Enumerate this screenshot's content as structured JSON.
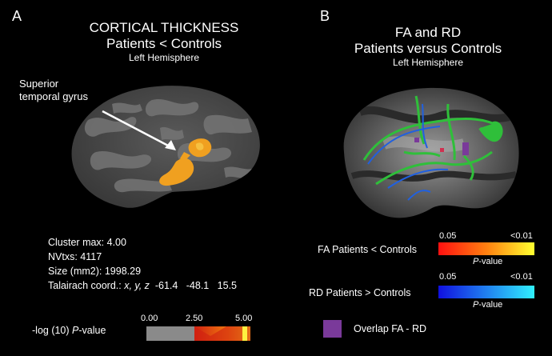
{
  "panel_a": {
    "letter": "A",
    "title_line1": "CORTICAL THICKNESS",
    "title_line2": "Patients < Controls",
    "subtitle": "Left Hemisphere",
    "annotation_line1": "Superior",
    "annotation_line2": "temporal gyrus",
    "stats": {
      "cluster_max": "Cluster max: 4.00",
      "nvtxs": "NVtxs: 4117",
      "size": "Size (mm2): 1998.29",
      "talairach_label": "Talairach coord.: ",
      "talairach_axes": "x, y, z",
      "talairach_values": "  -61.4   -48.1   15.5"
    },
    "colorbar": {
      "label_prefix": "-log (10) ",
      "label_italic": "P",
      "label_suffix": "-value",
      "tick_0": "0.00",
      "tick_1": "2.50",
      "tick_2": "5.00"
    }
  },
  "panel_b": {
    "letter": "B",
    "title_line1": "FA and RD",
    "title_line2": "Patients versus Controls",
    "subtitle": "Left Hemisphere",
    "fa_legend": {
      "label": "FA  Patients < Controls",
      "tick_low": "0.05",
      "tick_high": "<0.01",
      "pvalue_italic": "P",
      "pvalue_suffix": "-value"
    },
    "rd_legend": {
      "label": "RD  Patients > Controls",
      "tick_low": "0.05",
      "tick_high": "<0.01",
      "pvalue_italic": "P",
      "pvalue_suffix": "-value"
    },
    "overlap_label": "Overlap FA - RD"
  },
  "colors": {
    "background": "#000000",
    "cortex_dark": "#3a3a3a",
    "cortex_light": "#6a6a6a",
    "thinning_orange": "#f0a020",
    "fa_green": "#2fbf3a",
    "rd_blue": "#2060e0",
    "overlap_purple": "#7a3a9a"
  }
}
